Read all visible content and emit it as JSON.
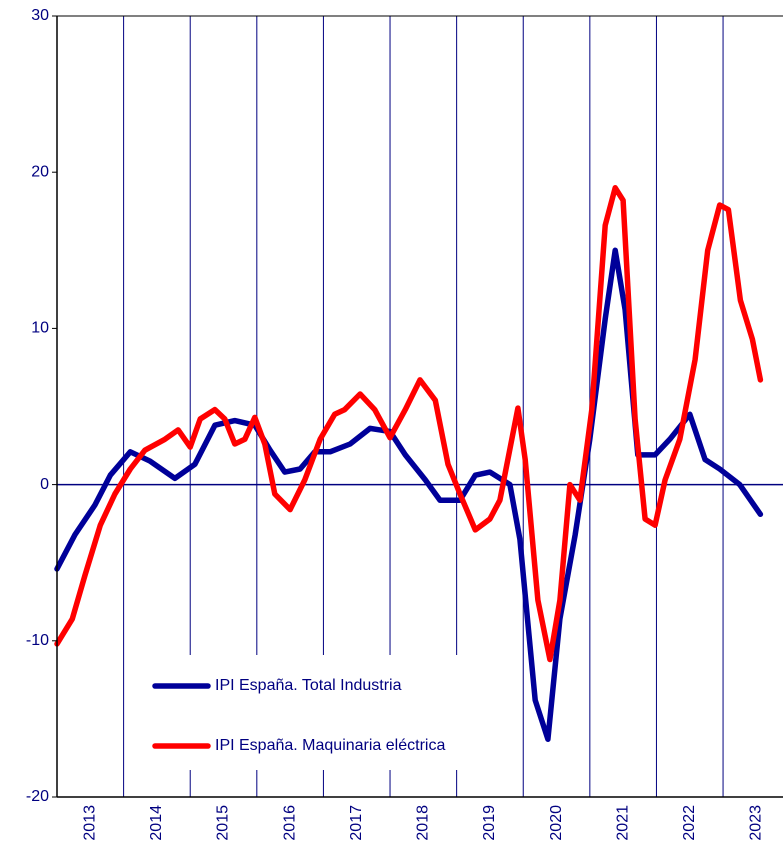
{
  "chart_data": {
    "type": "line",
    "xlim": [
      2013,
      2023.9
    ],
    "ylim": [
      -20,
      30
    ],
    "yticks": [
      30,
      20,
      10,
      0,
      -10,
      -20
    ],
    "xticks": [
      {
        "value": 2013.5,
        "label": "2013"
      },
      {
        "value": 2014.5,
        "label": "2014"
      },
      {
        "value": 2015.5,
        "label": "2015"
      },
      {
        "value": 2016.5,
        "label": "2016"
      },
      {
        "value": 2017.5,
        "label": "2017"
      },
      {
        "value": 2018.5,
        "label": "2018"
      },
      {
        "value": 2019.5,
        "label": "2019"
      },
      {
        "value": 2020.5,
        "label": "2020"
      },
      {
        "value": 2021.5,
        "label": "2021"
      },
      {
        "value": 2022.5,
        "label": "2022"
      },
      {
        "value": 2023.5,
        "label": "2023"
      }
    ],
    "xgrid": [
      2014,
      2015,
      2016,
      2017,
      2018,
      2019,
      2020,
      2021,
      2022,
      2023
    ],
    "series": [
      {
        "name": "IPI España. Total Industria",
        "color": "#000099",
        "x": [
          2013.0,
          2013.27,
          2013.57,
          2013.8,
          2014.1,
          2014.4,
          2014.77,
          2015.07,
          2015.37,
          2015.67,
          2015.97,
          2016.2,
          2016.42,
          2016.65,
          2016.87,
          2017.1,
          2017.4,
          2017.7,
          2018.0,
          2018.23,
          2018.53,
          2018.75,
          2019.05,
          2019.28,
          2019.5,
          2019.8,
          2019.95,
          2020.18,
          2020.37,
          2020.55,
          2020.78,
          2021.0,
          2021.23,
          2021.38,
          2021.53,
          2021.72,
          2021.98,
          2022.2,
          2022.5,
          2022.73,
          2022.95,
          2023.25,
          2023.56
        ],
        "values": [
          -5.4,
          -3.2,
          -1.3,
          0.6,
          2.1,
          1.5,
          0.4,
          1.3,
          3.8,
          4.1,
          3.8,
          2.2,
          0.8,
          1.0,
          2.1,
          2.1,
          2.6,
          3.6,
          3.4,
          1.9,
          0.3,
          -1.0,
          -1.0,
          0.6,
          0.8,
          0.0,
          -3.5,
          -13.8,
          -16.3,
          -8.6,
          -3.2,
          2.9,
          10.6,
          15.0,
          11.2,
          1.9,
          1.9,
          2.9,
          4.5,
          1.6,
          1.0,
          0.0,
          -1.9
        ]
      },
      {
        "name": "IPI España. Maquinaria eléctrica",
        "color": "#ff0000",
        "x": [
          2013.0,
          2013.23,
          2013.42,
          2013.65,
          2013.87,
          2014.1,
          2014.32,
          2014.62,
          2014.82,
          2015.0,
          2015.15,
          2015.37,
          2015.52,
          2015.67,
          2015.82,
          2015.97,
          2016.12,
          2016.27,
          2016.5,
          2016.72,
          2016.95,
          2017.17,
          2017.32,
          2017.55,
          2017.77,
          2018.0,
          2018.23,
          2018.45,
          2018.68,
          2018.87,
          2019.05,
          2019.28,
          2019.5,
          2019.65,
          2019.92,
          2020.03,
          2020.22,
          2020.4,
          2020.55,
          2020.7,
          2020.85,
          2021.03,
          2021.23,
          2021.38,
          2021.5,
          2021.68,
          2021.83,
          2021.98,
          2022.13,
          2022.35,
          2022.58,
          2022.77,
          2022.95,
          2023.08,
          2023.26,
          2023.44,
          2023.56
        ],
        "values": [
          -10.2,
          -8.6,
          -5.8,
          -2.6,
          -0.6,
          1.0,
          2.2,
          2.9,
          3.5,
          2.4,
          4.2,
          4.8,
          4.2,
          2.6,
          2.9,
          4.3,
          2.6,
          -0.6,
          -1.6,
          0.3,
          2.9,
          4.5,
          4.8,
          5.8,
          4.8,
          3.0,
          4.8,
          6.7,
          5.4,
          1.3,
          -0.6,
          -2.9,
          -2.2,
          -1.0,
          4.9,
          1.6,
          -7.4,
          -11.2,
          -7.4,
          0.0,
          -1.0,
          4.8,
          16.6,
          19.0,
          18.2,
          4.2,
          -2.2,
          -2.6,
          0.3,
          2.9,
          8.0,
          15.0,
          17.9,
          17.6,
          11.8,
          9.3,
          6.7
        ]
      }
    ]
  }
}
